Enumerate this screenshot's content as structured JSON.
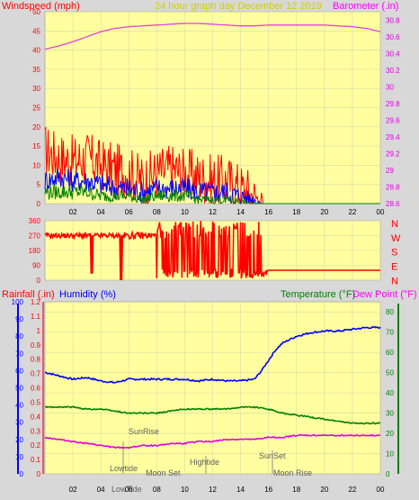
{
  "header": {
    "left": "Windspeed (mph)",
    "center": "24 hour graph day   December 12 2019",
    "right": "Barometer (.in)"
  },
  "colors": {
    "background": "#d8d8d8",
    "plot_bg": "#ffffa0",
    "grid": "#d0d0a0",
    "wind_gust": "#ff0000",
    "wind_avg": "#0000ff",
    "wind_low": "#008000",
    "barometer": "#e040e0",
    "humidity": "#0000ff",
    "temperature": "#008000",
    "dewpoint": "#e000e0",
    "rainfall": "#ff0000"
  },
  "chart_data": [
    {
      "id": "wind-baro",
      "type": "line",
      "x_ticks": [
        "02",
        "04",
        "06",
        "08",
        "10",
        "12",
        "14",
        "16",
        "18",
        "20",
        "22",
        "00"
      ],
      "left_axis": {
        "label": "Windspeed (mph)",
        "ylim": [
          0,
          50
        ],
        "ticks": [
          "0",
          "5",
          "10",
          "15",
          "20",
          "25",
          "30",
          "35",
          "40",
          "45",
          "50"
        ]
      },
      "right_axis": {
        "label": "Barometer (.in)",
        "ylim": [
          28.6,
          30.9
        ],
        "ticks": [
          "28.6",
          "28.8",
          "29",
          "29.2",
          "29.4",
          "29.6",
          "29.8",
          "30",
          "30.2",
          "30.4",
          "30.6",
          "30.8"
        ]
      },
      "series": [
        {
          "name": "Windspeed (mph)",
          "role": "gust",
          "color": "#ff0000",
          "x": [
            0,
            1,
            2,
            3,
            4,
            5,
            6,
            7,
            8,
            9,
            10,
            11,
            12,
            13,
            14,
            14.5,
            15,
            15.5,
            16,
            24
          ],
          "y": [
            14,
            12,
            11,
            12,
            10,
            9,
            8,
            6,
            8,
            9,
            8,
            7,
            6,
            6,
            4,
            3,
            2,
            0.5,
            0,
            0
          ]
        },
        {
          "name": "Windspeed (mph)",
          "role": "average",
          "color": "#0000ff",
          "x": [
            0,
            1,
            2,
            3,
            4,
            5,
            6,
            7,
            8,
            9,
            10,
            11,
            12,
            13,
            14,
            15,
            15.5,
            24
          ],
          "y": [
            6,
            7,
            6,
            6,
            5,
            4,
            4,
            3,
            4,
            4,
            4,
            3,
            3,
            3,
            2,
            1,
            0,
            0
          ]
        },
        {
          "name": "Windspeed (mph)",
          "role": "low",
          "color": "#008000",
          "x": [
            0,
            1,
            2,
            3,
            4,
            5,
            6,
            7,
            8,
            9,
            10,
            11,
            12,
            13,
            14,
            15,
            24
          ],
          "y": [
            3,
            3,
            3,
            3,
            2,
            2,
            2,
            1,
            2,
            2,
            2,
            1,
            1,
            1,
            0.5,
            0,
            0
          ]
        },
        {
          "name": "Barometer (.in)",
          "color": "#e040e0",
          "x": [
            0,
            1,
            2,
            3,
            4,
            5,
            6,
            7,
            8,
            9,
            10,
            11,
            12,
            13,
            14,
            15,
            16,
            17,
            18,
            19,
            20,
            21,
            22,
            23,
            24
          ],
          "y": [
            30.45,
            30.49,
            30.54,
            30.6,
            30.66,
            30.7,
            30.72,
            30.73,
            30.74,
            30.75,
            30.76,
            30.76,
            30.75,
            30.74,
            30.73,
            30.73,
            30.74,
            30.74,
            30.74,
            30.74,
            30.74,
            30.73,
            30.72,
            30.7,
            30.66
          ]
        }
      ]
    },
    {
      "id": "wind-direction",
      "type": "line",
      "x_ticks": [
        "02",
        "04",
        "06",
        "08",
        "10",
        "12",
        "14",
        "16",
        "18",
        "20",
        "22",
        "00"
      ],
      "left_axis": {
        "ylim": [
          0,
          360
        ],
        "ticks": [
          "0",
          "90",
          "180",
          "270",
          "360"
        ]
      },
      "right_labels": [
        "N",
        "W",
        "S",
        "E",
        "N"
      ],
      "series": [
        {
          "name": "Wind direction",
          "color": "#ff0000",
          "x": [
            0,
            3.3,
            3.4,
            3.5,
            5.4,
            5.5,
            5.6,
            8,
            15.5,
            15.8,
            16,
            24
          ],
          "y": [
            270,
            270,
            40,
            270,
            270,
            0,
            270,
            280,
            100,
            40,
            60,
            60
          ]
        }
      ]
    },
    {
      "id": "temp-hum",
      "type": "line",
      "x_ticks": [
        "02",
        "04",
        "06",
        "08",
        "10",
        "12",
        "14",
        "16",
        "18",
        "20",
        "22",
        "00"
      ],
      "left_axes": [
        {
          "label": "Rainfall (.in)",
          "ylim": [
            0,
            1.2
          ],
          "ticks": [
            "0",
            "0.1",
            "0.2",
            "0.3",
            "0.4",
            "0.5",
            "0.6",
            "0.7",
            "0.8",
            "0.9",
            "1",
            "1.1",
            "1.2"
          ]
        },
        {
          "label": "Humidity (%)",
          "ylim": [
            0,
            100
          ],
          "ticks": [
            "0",
            "10",
            "20",
            "30",
            "40",
            "50",
            "60",
            "70",
            "80",
            "90",
            "100"
          ]
        }
      ],
      "right_axes": [
        {
          "label": "Temperature (°F)"
        },
        {
          "label": "Dew Point (°F)",
          "ylim": [
            0,
            85
          ],
          "ticks": [
            "0",
            "10",
            "20",
            "30",
            "40",
            "50",
            "60",
            "70",
            "80"
          ]
        }
      ],
      "series": [
        {
          "name": "Humidity (%)",
          "axis": "humidity",
          "color": "#0000ff",
          "x": [
            0,
            1,
            2,
            3,
            4,
            5,
            6,
            7,
            8,
            9,
            10,
            11,
            12,
            13,
            14,
            15,
            15.5,
            16,
            16.5,
            17,
            18,
            19,
            20,
            21,
            22,
            23,
            24
          ],
          "y": [
            59,
            57,
            55,
            56,
            54,
            53,
            55,
            55,
            55,
            55,
            55,
            54,
            55,
            54,
            54,
            55,
            60,
            66,
            72,
            76,
            80,
            82,
            83,
            83,
            84,
            85,
            85
          ]
        },
        {
          "name": "Temperature (°F)",
          "axis": "temp",
          "color": "#008000",
          "x": [
            0,
            1,
            2,
            3,
            4,
            5,
            6,
            7,
            8,
            9,
            10,
            11,
            12,
            13,
            14,
            15,
            16,
            17,
            18,
            19,
            20,
            21,
            22,
            23,
            24
          ],
          "y": [
            33,
            33,
            33,
            32,
            32,
            31,
            30,
            30,
            30,
            31,
            32,
            32,
            32,
            32,
            33,
            33,
            32,
            30,
            29,
            28,
            27,
            26,
            25,
            25,
            25
          ]
        },
        {
          "name": "Dew Point (°F)",
          "axis": "temp",
          "color": "#e000e0",
          "x": [
            0,
            1,
            2,
            3,
            4,
            5,
            6,
            7,
            8,
            9,
            10,
            11,
            12,
            13,
            14,
            15,
            16,
            17,
            18,
            19,
            20,
            21,
            22,
            23,
            24
          ],
          "y": [
            18,
            17,
            16,
            15,
            14,
            13,
            13,
            14,
            14,
            15,
            15,
            16,
            16,
            17,
            17,
            17,
            18,
            18,
            19,
            19,
            19,
            19,
            19,
            19,
            19
          ]
        }
      ]
    }
  ],
  "annotations": {
    "sunrise": "SunRise",
    "sunset": "SunSet",
    "hightide": "Hightide",
    "lowtide": "Lowtide",
    "lowtide2": "LowTide",
    "moonset": "Moon Set",
    "moonrise": "Moon Rise"
  }
}
